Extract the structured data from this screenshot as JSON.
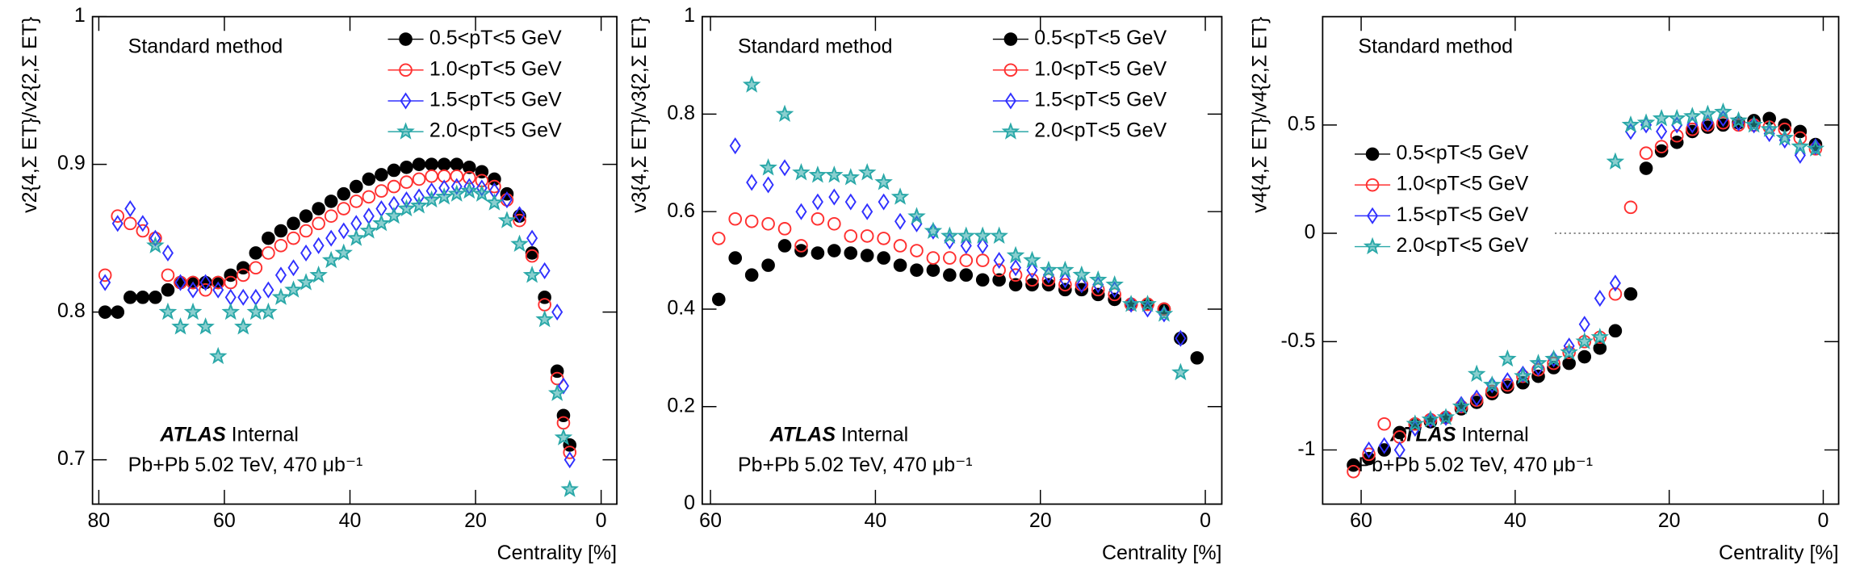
{
  "chart_data": [
    {
      "type": "scatter",
      "ylabel": "v2{4,Σ ET}/v2{2,Σ ET}",
      "xlabel": "Centrality [%]",
      "xlim": [
        81,
        -2.5
      ],
      "ylim": [
        0.67,
        1
      ],
      "xticks": [
        80,
        60,
        40,
        20,
        0
      ],
      "yticks": [
        0.7,
        0.8,
        0.9,
        1
      ],
      "legend_position": "upper right",
      "annotations": {
        "method": "Standard method",
        "experiment": "ATLAS",
        "status": "Internal",
        "dataset": "Pb+Pb 5.02 TeV, 470 μb⁻¹"
      },
      "x": [
        79,
        77,
        75,
        73,
        71,
        69,
        67,
        65,
        63,
        61,
        59,
        57,
        55,
        53,
        51,
        49,
        47,
        45,
        43,
        41,
        39,
        37,
        35,
        33,
        31,
        29,
        27,
        25,
        23,
        21,
        19,
        17,
        15,
        13,
        11,
        9,
        7,
        6,
        5
      ],
      "series": [
        {
          "name": "0.5<pT<5 GeV",
          "color": "#000000",
          "marker": "circle-filled",
          "values": [
            0.8,
            0.8,
            0.81,
            0.81,
            0.81,
            0.815,
            0.82,
            0.82,
            0.82,
            0.82,
            0.825,
            0.83,
            0.84,
            0.85,
            0.855,
            0.86,
            0.865,
            0.87,
            0.875,
            0.88,
            0.885,
            0.89,
            0.893,
            0.896,
            0.898,
            0.9,
            0.9,
            0.9,
            0.9,
            0.898,
            0.895,
            0.89,
            0.88,
            0.865,
            0.84,
            0.81,
            0.76,
            0.73,
            0.71
          ]
        },
        {
          "name": "1.0<pT<5 GeV",
          "color": "#ff3030",
          "marker": "circle-open",
          "values": [
            0.825,
            0.865,
            0.86,
            0.855,
            0.85,
            0.825,
            0.82,
            0.82,
            0.815,
            0.82,
            0.82,
            0.825,
            0.83,
            0.84,
            0.845,
            0.85,
            0.855,
            0.86,
            0.865,
            0.87,
            0.875,
            0.878,
            0.882,
            0.885,
            0.888,
            0.89,
            0.892,
            0.892,
            0.892,
            0.891,
            0.889,
            0.885,
            0.876,
            0.862,
            0.838,
            0.805,
            0.755,
            0.725,
            0.705
          ]
        },
        {
          "name": "1.5<pT<5 GeV",
          "color": "#3030ff",
          "marker": "diamond-open",
          "values": [
            0.82,
            0.86,
            0.87,
            0.86,
            0.85,
            0.84,
            0.82,
            0.815,
            0.82,
            0.815,
            0.81,
            0.81,
            0.81,
            0.815,
            0.825,
            0.83,
            0.84,
            0.845,
            0.85,
            0.855,
            0.86,
            0.865,
            0.87,
            0.873,
            0.876,
            0.878,
            0.882,
            0.884,
            0.885,
            0.885,
            0.884,
            0.882,
            0.876,
            0.866,
            0.85,
            0.828,
            0.8,
            0.75,
            0.7
          ]
        },
        {
          "name": "2.0<pT<5 GeV",
          "color": "#2aa8a8",
          "marker": "star",
          "values": [
            null,
            null,
            null,
            null,
            0.845,
            0.8,
            0.79,
            0.8,
            0.79,
            0.77,
            0.8,
            0.79,
            0.8,
            0.8,
            0.81,
            0.815,
            0.82,
            0.825,
            0.835,
            0.84,
            0.85,
            0.855,
            0.86,
            0.865,
            0.87,
            0.872,
            0.876,
            0.878,
            0.88,
            0.882,
            0.88,
            0.874,
            0.862,
            0.846,
            0.825,
            0.795,
            0.745,
            0.715,
            0.68
          ]
        }
      ]
    },
    {
      "type": "scatter",
      "ylabel": "v3{4,Σ ET}/v3{2,Σ ET}",
      "xlabel": "Centrality [%]",
      "xlim": [
        61,
        -2
      ],
      "ylim": [
        0,
        1
      ],
      "xticks": [
        60,
        40,
        20,
        0
      ],
      "yticks": [
        0,
        0.2,
        0.4,
        0.6,
        0.8,
        1
      ],
      "legend_position": "upper right",
      "annotations": {
        "method": "Standard method",
        "experiment": "ATLAS",
        "status": "Internal",
        "dataset": "Pb+Pb 5.02 TeV, 470 μb⁻¹"
      },
      "x": [
        59,
        57,
        55,
        53,
        51,
        49,
        47,
        45,
        43,
        41,
        39,
        37,
        35,
        33,
        31,
        29,
        27,
        25,
        23,
        21,
        19,
        17,
        15,
        13,
        11,
        9,
        7,
        5,
        3,
        1
      ],
      "series": [
        {
          "name": "0.5<pT<5 GeV",
          "color": "#000000",
          "marker": "circle-filled",
          "values": [
            0.42,
            0.505,
            0.47,
            0.49,
            0.53,
            0.52,
            0.515,
            0.52,
            0.515,
            0.51,
            0.505,
            0.49,
            0.48,
            0.48,
            0.47,
            0.47,
            0.46,
            0.46,
            0.45,
            0.45,
            0.45,
            0.44,
            0.44,
            0.43,
            0.42,
            0.41,
            0.41,
            0.4,
            0.34,
            0.3
          ]
        },
        {
          "name": "1.0<pT<5 GeV",
          "color": "#ff3030",
          "marker": "circle-open",
          "values": [
            0.545,
            0.585,
            0.58,
            0.575,
            0.565,
            0.53,
            0.585,
            0.575,
            0.55,
            0.55,
            0.545,
            0.53,
            0.52,
            0.505,
            0.505,
            0.5,
            0.5,
            0.48,
            0.47,
            0.46,
            0.46,
            0.45,
            0.45,
            0.44,
            0.43,
            0.41,
            0.41,
            0.4,
            null,
            null
          ]
        },
        {
          "name": "1.5<pT<5 GeV",
          "color": "#3030ff",
          "marker": "diamond-open",
          "values": [
            null,
            0.735,
            0.66,
            0.655,
            0.69,
            0.6,
            0.62,
            0.63,
            0.62,
            0.6,
            0.62,
            0.58,
            0.575,
            0.56,
            0.54,
            0.53,
            0.53,
            0.5,
            0.485,
            0.48,
            0.47,
            0.46,
            0.45,
            0.45,
            0.44,
            0.41,
            0.4,
            0.39,
            0.34,
            null
          ]
        },
        {
          "name": "2.0<pT<5 GeV",
          "color": "#2aa8a8",
          "marker": "star",
          "values": [
            null,
            null,
            0.86,
            0.69,
            0.8,
            0.68,
            0.675,
            0.675,
            0.67,
            0.68,
            0.66,
            0.63,
            0.59,
            0.56,
            0.55,
            0.55,
            0.55,
            0.55,
            0.51,
            0.5,
            0.48,
            0.48,
            0.47,
            0.46,
            0.45,
            0.41,
            0.41,
            0.39,
            0.27,
            null
          ]
        }
      ]
    },
    {
      "type": "scatter",
      "ylabel": "v4{4,Σ ET}/v4{2,Σ ET}",
      "xlabel": "Centrality [%]",
      "xlim": [
        65,
        -2
      ],
      "ylim": [
        -1.25,
        1
      ],
      "xticks": [
        60,
        40,
        20,
        0
      ],
      "yticks": [
        -1,
        -0.5,
        0,
        0.5
      ],
      "legend_position": "center left",
      "reference_line": 0,
      "annotations": {
        "method": "Standard method",
        "experiment": "ATLAS",
        "status": "Internal",
        "dataset": "Pb+Pb 5.02 TeV, 470 μb⁻¹"
      },
      "x": [
        61,
        59,
        57,
        55,
        53,
        51,
        49,
        47,
        45,
        43,
        41,
        39,
        37,
        35,
        33,
        31,
        29,
        27,
        25,
        23,
        21,
        19,
        17,
        15,
        13,
        11,
        9,
        7,
        5,
        3,
        1
      ],
      "series": [
        {
          "name": "0.5<pT<5 GeV",
          "color": "#000000",
          "marker": "circle-filled",
          "values": [
            -1.07,
            -1.04,
            -1.0,
            -0.92,
            -0.88,
            -0.87,
            -0.85,
            -0.81,
            -0.78,
            -0.74,
            -0.71,
            -0.69,
            -0.66,
            -0.62,
            -0.6,
            -0.57,
            -0.53,
            -0.45,
            -0.28,
            0.3,
            0.38,
            0.42,
            0.47,
            0.49,
            0.5,
            0.51,
            0.52,
            0.53,
            0.5,
            0.47,
            0.41
          ]
        },
        {
          "name": "1.0<pT<5 GeV",
          "color": "#ff3030",
          "marker": "circle-open",
          "values": [
            -1.1,
            -1.02,
            -0.88,
            -0.94,
            -0.88,
            -0.86,
            -0.85,
            -0.8,
            -0.77,
            -0.73,
            -0.7,
            -0.66,
            -0.63,
            -0.6,
            -0.55,
            -0.5,
            -0.48,
            -0.28,
            0.12,
            0.37,
            0.4,
            0.45,
            0.48,
            0.5,
            0.51,
            0.5,
            0.5,
            0.49,
            0.48,
            0.44,
            0.39
          ]
        },
        {
          "name": "1.5<pT<5 GeV",
          "color": "#3030ff",
          "marker": "diamond-open",
          "values": [
            null,
            -1.0,
            -0.98,
            -1.0,
            -0.9,
            -0.86,
            -0.85,
            -0.79,
            -0.76,
            -0.7,
            -0.68,
            -0.65,
            -0.62,
            -0.58,
            -0.52,
            -0.42,
            -0.3,
            -0.23,
            0.47,
            0.5,
            0.47,
            0.5,
            0.5,
            0.51,
            0.53,
            0.51,
            0.5,
            0.46,
            0.43,
            0.36,
            0.4
          ]
        },
        {
          "name": "2.0<pT<5 GeV",
          "color": "#2aa8a8",
          "marker": "star",
          "values": [
            null,
            null,
            null,
            null,
            -0.88,
            -0.86,
            -0.85,
            -0.8,
            -0.65,
            -0.7,
            -0.58,
            -0.66,
            -0.6,
            -0.58,
            -0.55,
            -0.5,
            -0.48,
            0.33,
            0.5,
            0.51,
            0.53,
            0.53,
            0.54,
            0.55,
            0.56,
            0.52,
            0.5,
            0.48,
            0.44,
            0.4,
            0.39
          ]
        }
      ]
    }
  ]
}
